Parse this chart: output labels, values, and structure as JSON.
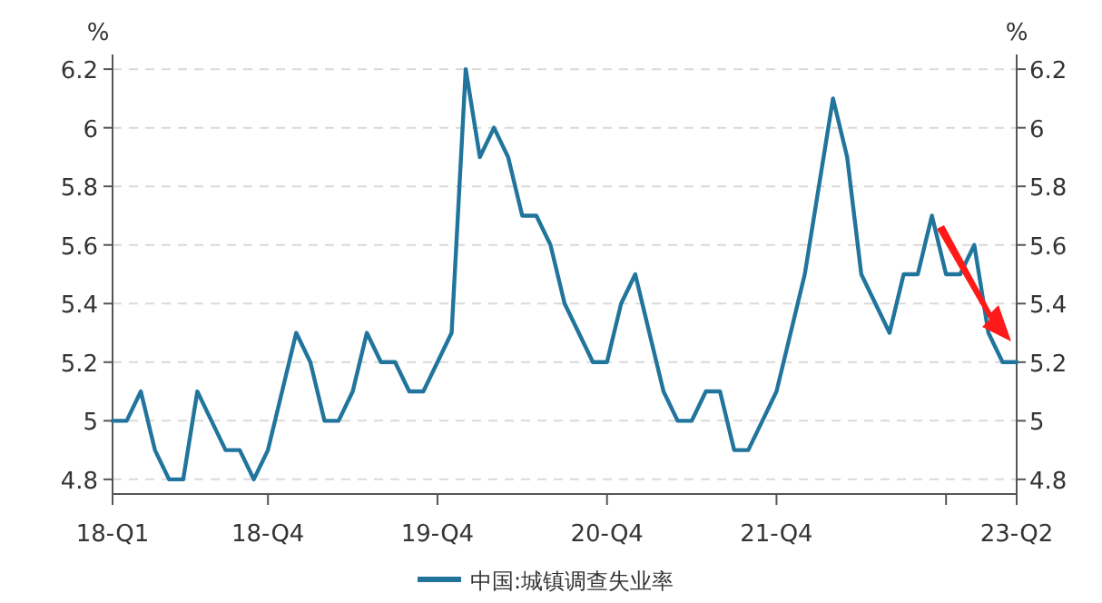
{
  "chart_data": {
    "type": "line",
    "ylabel": "%",
    "y2label": "%",
    "categories": [
      "18-Q1",
      null,
      null,
      null,
      null,
      null,
      null,
      null,
      null,
      null,
      null,
      "18-Q4",
      null,
      null,
      null,
      null,
      null,
      null,
      null,
      null,
      null,
      null,
      null,
      "19-Q4",
      null,
      null,
      null,
      null,
      null,
      null,
      null,
      null,
      null,
      null,
      null,
      "20-Q4",
      null,
      null,
      null,
      null,
      null,
      null,
      null,
      null,
      null,
      null,
      null,
      "21-Q4",
      null,
      null,
      null,
      null,
      null,
      null,
      null,
      null,
      null,
      null,
      null,
      null,
      null,
      null,
      null,
      null,
      "23-Q2"
    ],
    "series": [
      {
        "name": "中国:城镇调查失业率",
        "color": "#21759c",
        "values": [
          5.0,
          5.0,
          5.1,
          4.9,
          4.8,
          4.8,
          5.1,
          5.0,
          4.9,
          4.9,
          4.8,
          4.9,
          5.1,
          5.3,
          5.2,
          5.0,
          5.0,
          5.1,
          5.3,
          5.2,
          5.2,
          5.1,
          5.1,
          5.2,
          5.3,
          6.2,
          5.9,
          6.0,
          5.9,
          5.7,
          5.7,
          5.6,
          5.4,
          5.3,
          5.2,
          5.2,
          5.4,
          5.5,
          5.3,
          5.1,
          5.0,
          5.0,
          5.1,
          5.1,
          4.9,
          4.9,
          5.0,
          5.1,
          5.3,
          5.5,
          5.8,
          6.1,
          5.9,
          5.5,
          5.4,
          5.3,
          5.5,
          5.5,
          5.7,
          5.5,
          5.5,
          5.6,
          5.3,
          5.2,
          5.2
        ]
      }
    ],
    "ylim": [
      4.75,
      6.25
    ],
    "yticks": [
      4.8,
      5,
      5.2,
      5.4,
      5.6,
      5.8,
      6,
      6.2
    ],
    "y2lim": [
      4.75,
      6.25
    ],
    "y2ticks": [
      4.8,
      5,
      5.2,
      5.4,
      5.6,
      5.8,
      6,
      6.2
    ],
    "grid": "y",
    "legend": "bottom",
    "line_style": "solid",
    "marker": "none"
  }
}
